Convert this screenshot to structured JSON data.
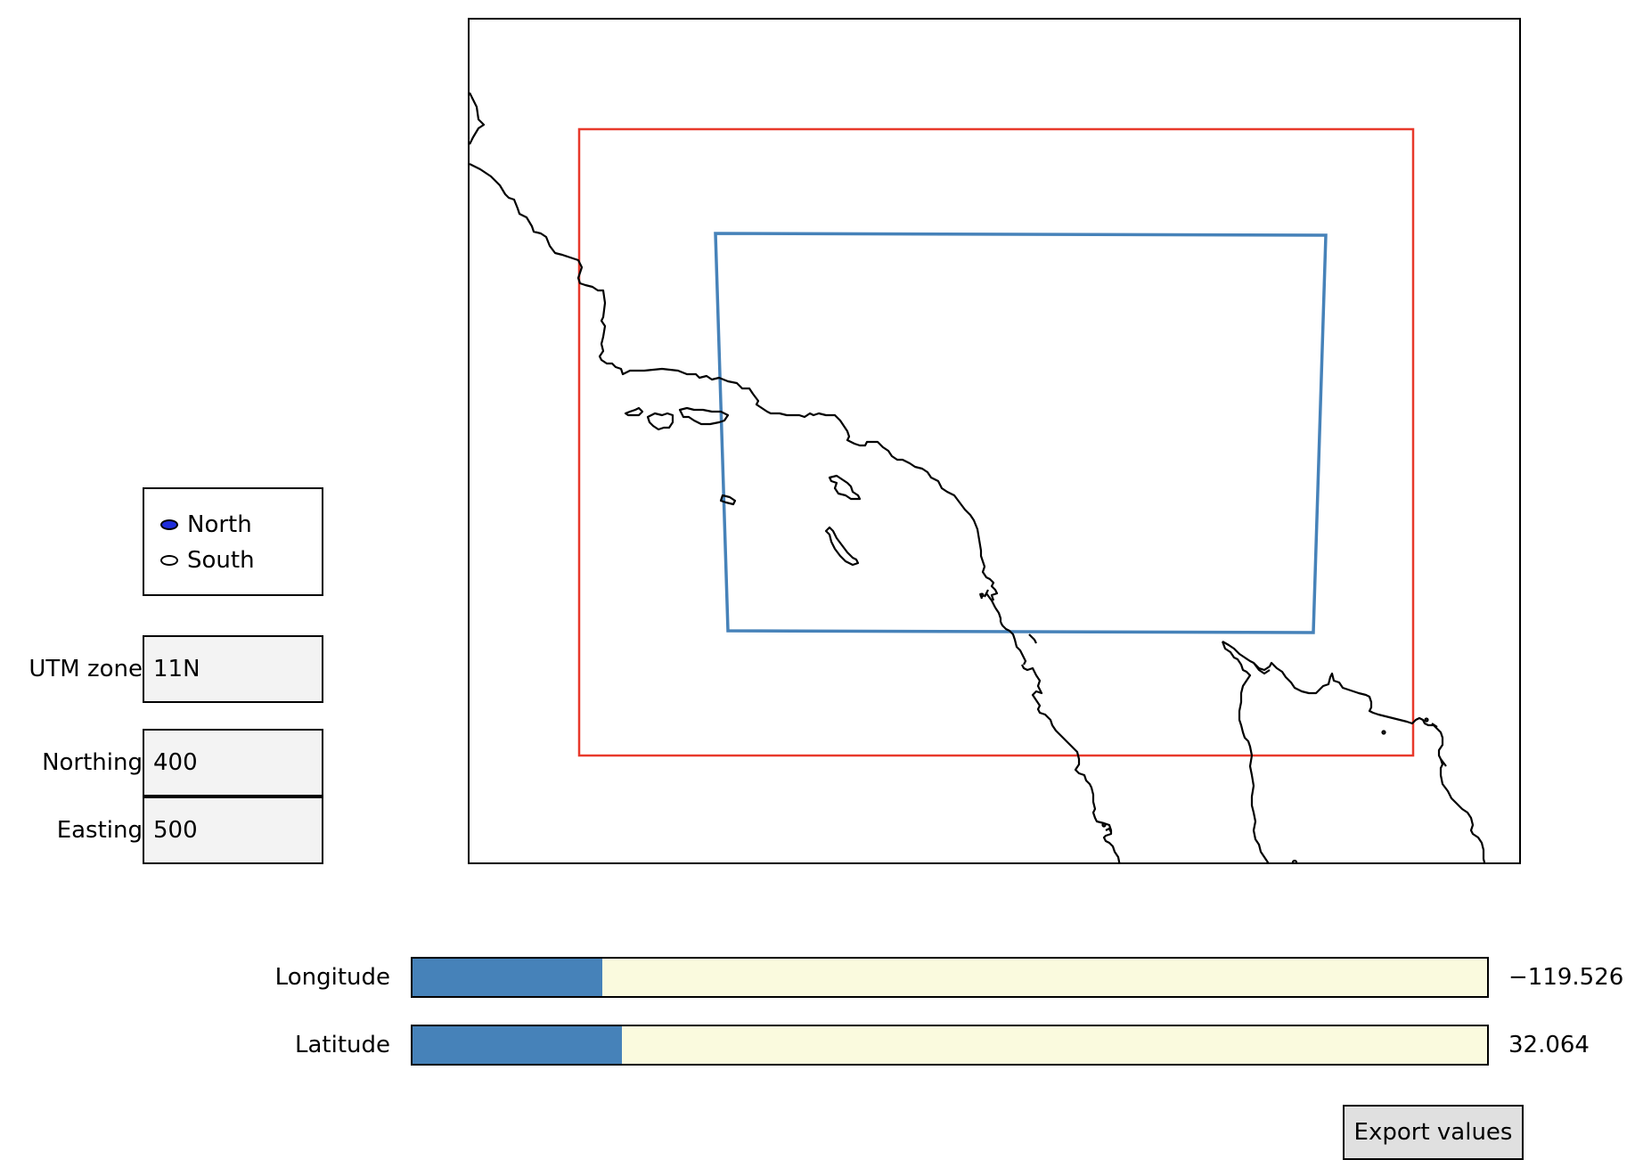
{
  "hemisphere": {
    "options": [
      {
        "label": "North",
        "selected": true
      },
      {
        "label": "South",
        "selected": false
      }
    ],
    "selected_color": "#1f2ddb"
  },
  "fields": {
    "utm_zone": {
      "label": "UTM zone",
      "value": "11N"
    },
    "northing": {
      "label": "Northing",
      "value": "400"
    },
    "easting": {
      "label": "Easting",
      "value": "500"
    }
  },
  "sliders": {
    "longitude": {
      "label": "Longitude",
      "value_text": "−119.526",
      "fraction": 0.177
    },
    "latitude": {
      "label": "Latitude",
      "value_text": "32.064",
      "fraction": 0.195
    },
    "fill_color": "#4682b9",
    "track_color": "#fafade"
  },
  "map": {
    "outer_rect_color": "#e8392b",
    "utm_box_color": "#4682b9",
    "coastline_color": "#000000"
  },
  "export_label": "Export values"
}
